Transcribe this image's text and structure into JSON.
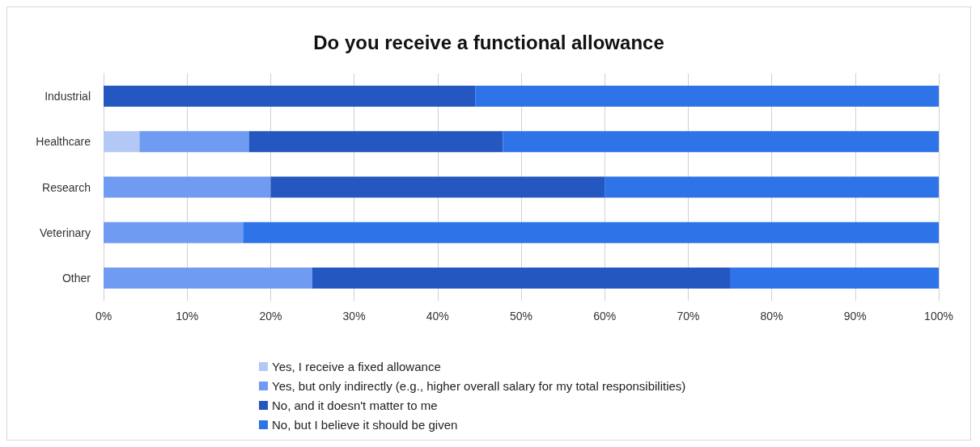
{
  "chart_data": {
    "type": "bar",
    "orientation": "horizontal",
    "stacked": true,
    "title": "Do you receive a functional allowance",
    "categories": [
      "Industrial",
      "Healthcare",
      "Research",
      "Veterinary",
      "Other"
    ],
    "series": [
      {
        "name": "Yes, I receive a fixed allowance",
        "color": "#b4c8f5",
        "values": [
          0,
          4.3,
          0,
          0,
          0
        ]
      },
      {
        "name": "Yes, but only indirectly (e.g., higher overall salary for my total responsibilities)",
        "color": "#6f9bf2",
        "values": [
          0,
          13.1,
          20,
          16.7,
          25
        ]
      },
      {
        "name": "No, and it doesn't matter to me",
        "color": "#2458c0",
        "values": [
          44.5,
          30.4,
          40,
          0,
          50
        ]
      },
      {
        "name": "No, but I believe it should be given",
        "color": "#2f73e8",
        "values": [
          55.5,
          52.2,
          40,
          83.3,
          25
        ]
      }
    ],
    "xlim": [
      0,
      100
    ],
    "xticks": [
      {
        "value": 0,
        "label": "0%"
      },
      {
        "value": 10,
        "label": "10%"
      },
      {
        "value": 20,
        "label": "20%"
      },
      {
        "value": 30,
        "label": "30%"
      },
      {
        "value": 40,
        "label": "40%"
      },
      {
        "value": 50,
        "label": "50%"
      },
      {
        "value": 60,
        "label": "60%"
      },
      {
        "value": 70,
        "label": "70%"
      },
      {
        "value": 80,
        "label": "80%"
      },
      {
        "value": 90,
        "label": "90%"
      },
      {
        "value": 100,
        "label": "100%"
      }
    ],
    "grid": "x",
    "legend": "bottom"
  }
}
